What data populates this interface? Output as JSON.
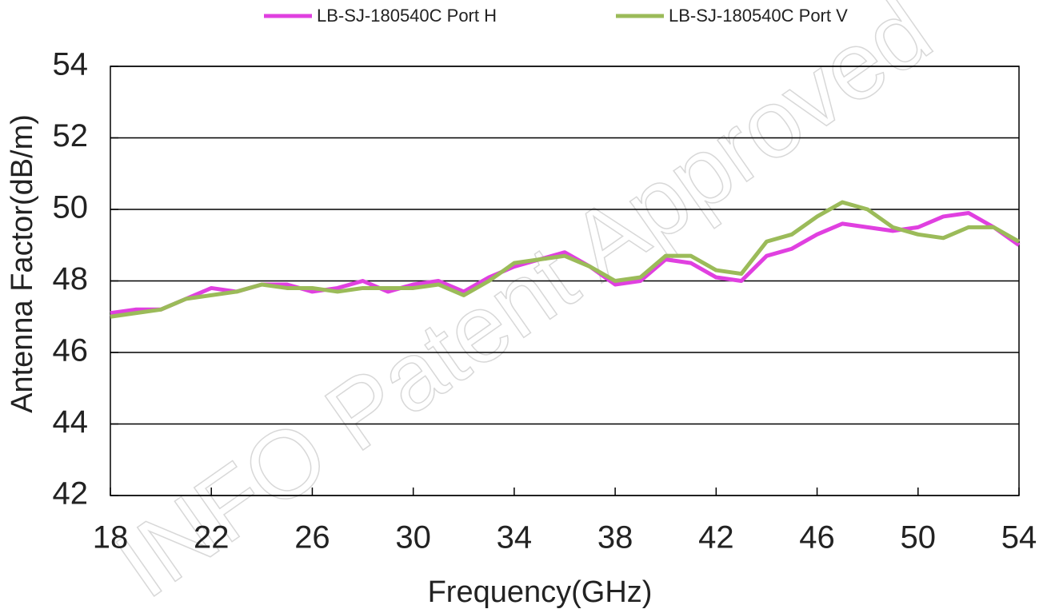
{
  "chart_data": {
    "type": "line",
    "watermark": "INFO Patent Approved",
    "x_label": "Frequency(GHz)",
    "y_label": "Antenna Factor(dB/m)",
    "x": [
      18,
      19,
      20,
      21,
      22,
      23,
      24,
      25,
      26,
      27,
      28,
      29,
      30,
      31,
      32,
      33,
      34,
      35,
      36,
      37,
      38,
      39,
      40,
      41,
      42,
      43,
      44,
      45,
      46,
      47,
      48,
      49,
      50,
      51,
      52,
      53,
      54
    ],
    "series": [
      {
        "name": "LB-SJ-180540C Port H",
        "color": "#e040e0",
        "values": [
          47.1,
          47.2,
          47.2,
          47.5,
          47.8,
          47.7,
          47.9,
          47.9,
          47.7,
          47.8,
          48.0,
          47.7,
          47.9,
          48.0,
          47.7,
          48.1,
          48.4,
          48.6,
          48.8,
          48.4,
          47.9,
          48.0,
          48.6,
          48.5,
          48.1,
          48.0,
          48.7,
          48.9,
          49.3,
          49.6,
          49.5,
          49.4,
          49.5,
          49.8,
          49.9,
          49.5,
          49.0
        ]
      },
      {
        "name": "LB-SJ-180540C Port V",
        "color": "#9bbb59",
        "values": [
          47.0,
          47.1,
          47.2,
          47.5,
          47.6,
          47.7,
          47.9,
          47.8,
          47.8,
          47.7,
          47.8,
          47.8,
          47.8,
          47.9,
          47.6,
          48.0,
          48.5,
          48.6,
          48.7,
          48.4,
          48.0,
          48.1,
          48.7,
          48.7,
          48.3,
          48.2,
          49.1,
          49.3,
          49.8,
          50.2,
          50.0,
          49.5,
          49.3,
          49.2,
          49.5,
          49.5,
          49.1
        ]
      }
    ],
    "xlim": [
      18,
      54
    ],
    "xticks": [
      18,
      22,
      26,
      30,
      34,
      38,
      42,
      46,
      50,
      54
    ],
    "ylim": [
      42,
      54
    ],
    "yticks": [
      42,
      44,
      46,
      48,
      50,
      52,
      54
    ],
    "grid": true,
    "legend": "top"
  }
}
